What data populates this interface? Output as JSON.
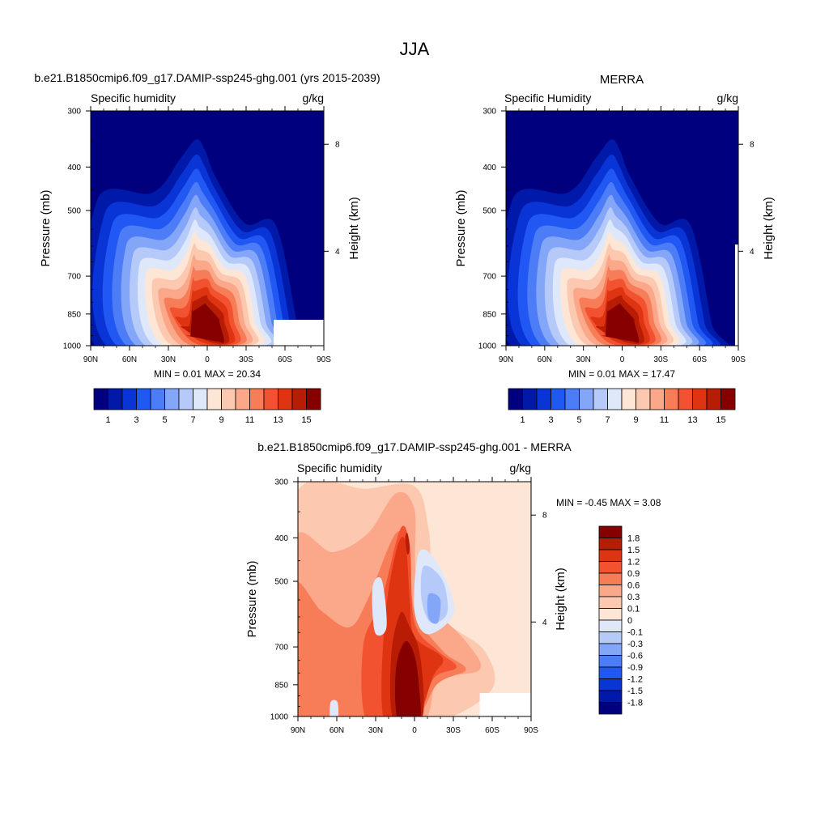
{
  "page": {
    "title": "JJA"
  },
  "scales": {
    "humidity_colors": [
      "#00007f",
      "#0019a8",
      "#0a35d6",
      "#2157f2",
      "#4d7cf7",
      "#84a6f9",
      "#b6caf9",
      "#dfe8fb",
      "#fde6d6",
      "#fcc9b0",
      "#fba78a",
      "#f77d58",
      "#f2522f",
      "#df3412",
      "#b81c04",
      "#870000"
    ],
    "humidity_labels": [
      "1",
      "3",
      "5",
      "7",
      "9",
      "11",
      "13",
      "15"
    ],
    "diff_colors": [
      "#00007f",
      "#0019a8",
      "#0a35d6",
      "#2157f2",
      "#4d7cf7",
      "#84a6f9",
      "#b6caf9",
      "#dfe8fb",
      "#fde6d6",
      "#fcc9b0",
      "#fba78a",
      "#f77d58",
      "#f2522f",
      "#df3412",
      "#b81c04",
      "#870000"
    ],
    "diff_labels": [
      "1.8",
      "1.5",
      "1.2",
      "0.9",
      "0.6",
      "0.3",
      "0.1",
      "0",
      "-0.1",
      "-0.3",
      "-0.6",
      "-0.9",
      "-1.2",
      "-1.5",
      "-1.8"
    ]
  },
  "chart_data": [
    {
      "type": "heatmap",
      "panel_title": "b.e21.B1850cmip6.f09_g17.DAMIP-ssp245-ghg.001 (yrs 2015-2039)",
      "left_label": "Specific humidity",
      "right_label": "g/kg",
      "ylabel": "Pressure (mb)",
      "y2label": "Height (km)",
      "x_ticks": [
        "90N",
        "60N",
        "30N",
        "0",
        "30S",
        "60S",
        "90S"
      ],
      "x_range": [
        90,
        -90
      ],
      "y_ticks": [
        "300",
        "400",
        "500",
        "700",
        "850",
        "1000"
      ],
      "y_range": [
        300,
        1000
      ],
      "y2_ticks": [
        "8",
        "4"
      ],
      "minmax_text": "MIN =   0.01  MAX =  20.34",
      "min": 0.01,
      "max": 20.34,
      "contour_levels_g_per_kg": [
        1,
        2,
        3,
        4,
        5,
        6,
        7,
        8,
        9,
        10,
        11,
        12,
        13,
        14,
        15
      ]
    },
    {
      "type": "heatmap",
      "panel_title": "MERRA",
      "left_label": "Specific Humidity",
      "right_label": "g/kg",
      "ylabel": "Pressure (mb)",
      "y2label": "Height (km)",
      "x_ticks": [
        "90N",
        "60N",
        "30N",
        "0",
        "30S",
        "60S",
        "90S"
      ],
      "x_range": [
        90,
        -90
      ],
      "y_ticks": [
        "300",
        "400",
        "500",
        "700",
        "850",
        "1000"
      ],
      "y_range": [
        300,
        1000
      ],
      "y2_ticks": [
        "8",
        "4"
      ],
      "minmax_text": "MIN =   0.01  MAX =  17.47",
      "min": 0.01,
      "max": 17.47,
      "contour_levels_g_per_kg": [
        1,
        2,
        3,
        4,
        5,
        6,
        7,
        8,
        9,
        10,
        11,
        12,
        13,
        14,
        15
      ]
    },
    {
      "type": "heatmap",
      "panel_title": "b.e21.B1850cmip6.f09_g17.DAMIP-ssp245-ghg.001 - MERRA",
      "left_label": "Specific humidity",
      "right_label": "g/kg",
      "ylabel": "Pressure (mb)",
      "y2label": "Height (km)",
      "x_ticks": [
        "90N",
        "60N",
        "30N",
        "0",
        "30S",
        "60S",
        "90S"
      ],
      "x_range": [
        90,
        -90
      ],
      "y_ticks": [
        "300",
        "400",
        "500",
        "700",
        "850",
        "1000"
      ],
      "y_range": [
        300,
        1000
      ],
      "y2_ticks": [
        "8",
        "4"
      ],
      "minmax_text": "MIN =  -0.45  MAX =   3.08",
      "min": -0.45,
      "max": 3.08,
      "contour_levels_g_per_kg": [
        -1.8,
        -1.5,
        -1.2,
        -0.9,
        -0.6,
        -0.3,
        -0.1,
        0,
        0.1,
        0.3,
        0.6,
        0.9,
        1.2,
        1.5,
        1.8
      ]
    }
  ]
}
